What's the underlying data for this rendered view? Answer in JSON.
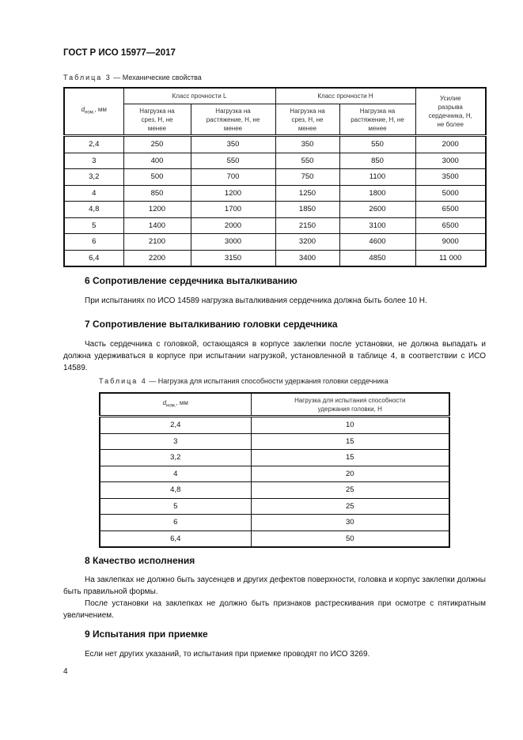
{
  "header": "ГОСТ Р ИСО 15977—2017",
  "table3": {
    "caption_prefix": "Таблица 3",
    "caption_text": " — Механические свойства",
    "col_d": "d",
    "col_d_sub": "ном.",
    "col_d_unit": ", мм",
    "group_L": "Класс прочности L",
    "group_H": "Класс прочности H",
    "sub_shear": "Нагрузка на срез, Н, не менее",
    "sub_tension": "Нагрузка на растяжение, Н, не менее",
    "col_break": "Усилие разрыва сердечника, Н, не более",
    "rows": [
      [
        "2,4",
        "250",
        "350",
        "350",
        "550",
        "2000"
      ],
      [
        "3",
        "400",
        "550",
        "550",
        "850",
        "3000"
      ],
      [
        "3,2",
        "500",
        "700",
        "750",
        "1100",
        "3500"
      ],
      [
        "4",
        "850",
        "1200",
        "1250",
        "1800",
        "5000"
      ],
      [
        "4,8",
        "1200",
        "1700",
        "1850",
        "2600",
        "6500"
      ],
      [
        "5",
        "1400",
        "2000",
        "2150",
        "3100",
        "6500"
      ],
      [
        "6",
        "2100",
        "3000",
        "3200",
        "4600",
        "9000"
      ],
      [
        "6,4",
        "2200",
        "3150",
        "3400",
        "4850",
        "11 000"
      ]
    ]
  },
  "s6": {
    "title": "6  Сопротивление сердечника выталкиванию",
    "text": "При испытаниях по ИСО 14589 нагрузка выталкивания сердечника должна быть более 10 Н."
  },
  "s7": {
    "title": "7  Сопротивление выталкиванию головки сердечника",
    "text": "Часть сердечника с головкой, остающаяся в корпусе заклепки после установки, не должна выпадать и должна удерживаться в корпусе при испытании нагрузкой, установленной в таблице 4, в соответствии с ИСО 14589."
  },
  "table4": {
    "caption_prefix": "Таблица 4",
    "caption_text": " — Нагрузка для испытания способности удержания головки сердечника",
    "col_d": "d",
    "col_d_sub": "ном.",
    "col_d_unit": ", мм",
    "col_load": "Нагрузка для испытания способности удержания головки, Н",
    "rows": [
      [
        "2,4",
        "10"
      ],
      [
        "3",
        "15"
      ],
      [
        "3,2",
        "15"
      ],
      [
        "4",
        "20"
      ],
      [
        "4,8",
        "25"
      ],
      [
        "5",
        "25"
      ],
      [
        "6",
        "30"
      ],
      [
        "6,4",
        "50"
      ]
    ]
  },
  "s8": {
    "title": "8  Качество исполнения",
    "p1": "На заклепках не должно быть заусенцев и других дефектов поверхности, головка и корпус заклепки должны быть правильной формы.",
    "p2": "После установки на заклепках не должно быть признаков растрескивания при осмотре с пятикратным увеличением."
  },
  "s9": {
    "title": "9  Испытания при приемке",
    "text": "Если нет других указаний, то испытания при приемке проводят по ИСО 3269."
  },
  "page_number": "4"
}
